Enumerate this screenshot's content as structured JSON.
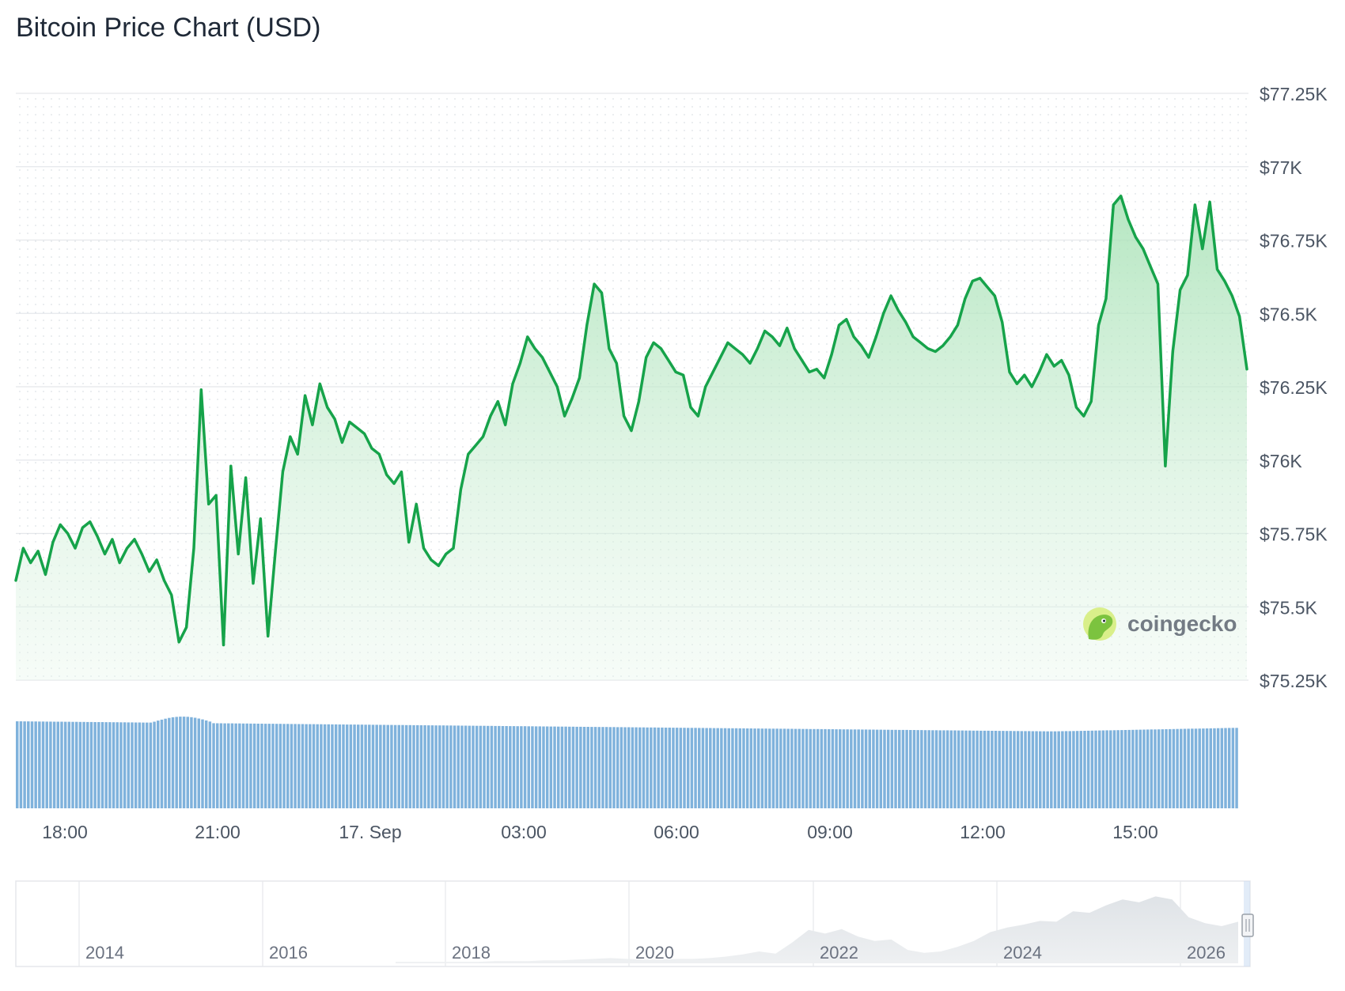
{
  "chart_data": {
    "type": "line",
    "title": "Bitcoin Price Chart (USD)",
    "y_ticks": [
      "$77.25K",
      "$77K",
      "$76.75K",
      "$76.5K",
      "$76.25K",
      "$76K",
      "$75.75K",
      "$75.5K",
      "$75.25K"
    ],
    "ylim": [
      75250,
      77250
    ],
    "x_tick_labels": [
      "18:00",
      "21:00",
      "17. Sep",
      "03:00",
      "06:00",
      "09:00",
      "12:00",
      "15:00"
    ],
    "price_series": [
      75590,
      75700,
      75650,
      75690,
      75610,
      75720,
      75780,
      75750,
      75700,
      75770,
      75790,
      75740,
      75680,
      75730,
      75650,
      75700,
      75730,
      75680,
      75620,
      75660,
      75590,
      75540,
      75380,
      75430,
      75700,
      76240,
      75850,
      75880,
      75370,
      75980,
      75680,
      75940,
      75580,
      75800,
      75400,
      75690,
      75960,
      76080,
      76020,
      76220,
      76120,
      76260,
      76180,
      76140,
      76060,
      76130,
      76110,
      76090,
      76040,
      76020,
      75950,
      75920,
      75960,
      75720,
      75850,
      75700,
      75660,
      75640,
      75680,
      75700,
      75900,
      76020,
      76050,
      76080,
      76150,
      76200,
      76120,
      76260,
      76330,
      76420,
      76380,
      76350,
      76300,
      76250,
      76150,
      76210,
      76280,
      76460,
      76600,
      76570,
      76380,
      76330,
      76150,
      76100,
      76200,
      76350,
      76400,
      76380,
      76340,
      76300,
      76290,
      76180,
      76150,
      76250,
      76300,
      76350,
      76400,
      76380,
      76360,
      76330,
      76380,
      76440,
      76420,
      76390,
      76450,
      76380,
      76340,
      76300,
      76310,
      76280,
      76360,
      76460,
      76480,
      76420,
      76390,
      76350,
      76420,
      76500,
      76560,
      76510,
      76470,
      76420,
      76400,
      76380,
      76370,
      76390,
      76420,
      76460,
      76550,
      76610,
      76620,
      76590,
      76560,
      76470,
      76300,
      76260,
      76290,
      76250,
      76300,
      76360,
      76320,
      76340,
      76290,
      76180,
      76150,
      76200,
      76460,
      76550,
      76870,
      76900,
      76820,
      76760,
      76720,
      76660,
      76600,
      75980,
      76370,
      76580,
      76630,
      76870,
      76720,
      76880,
      76650,
      76610,
      76560,
      76490,
      76310
    ],
    "volume_label": "volume",
    "navigator_year_labels": [
      "2014",
      "2016",
      "2018",
      "2020",
      "2022",
      "2024",
      "2026"
    ],
    "navigator_series": [
      0.02,
      0.02,
      0.02,
      0.02,
      0.02,
      0.02,
      0.03,
      0.03,
      0.03,
      0.04,
      0.04,
      0.05,
      0.06,
      0.07,
      0.06,
      0.05,
      0.05,
      0.06,
      0.06,
      0.07,
      0.09,
      0.12,
      0.16,
      0.13,
      0.28,
      0.45,
      0.4,
      0.46,
      0.36,
      0.3,
      0.32,
      0.18,
      0.14,
      0.16,
      0.22,
      0.3,
      0.42,
      0.48,
      0.52,
      0.57,
      0.56,
      0.7,
      0.68,
      0.78,
      0.86,
      0.82,
      0.9,
      0.86,
      0.62,
      0.54,
      0.5,
      0.56
    ]
  },
  "colors": {
    "line": "#16a34a",
    "area_top": "#bfe8c8",
    "grid": "#e5e7eb",
    "axis_text": "#4b5563",
    "volume": "#7fb2dc",
    "navigator_fill": "#e6e8eb",
    "logo_green": "#8bc34a"
  },
  "watermark": {
    "text": "coingecko"
  }
}
